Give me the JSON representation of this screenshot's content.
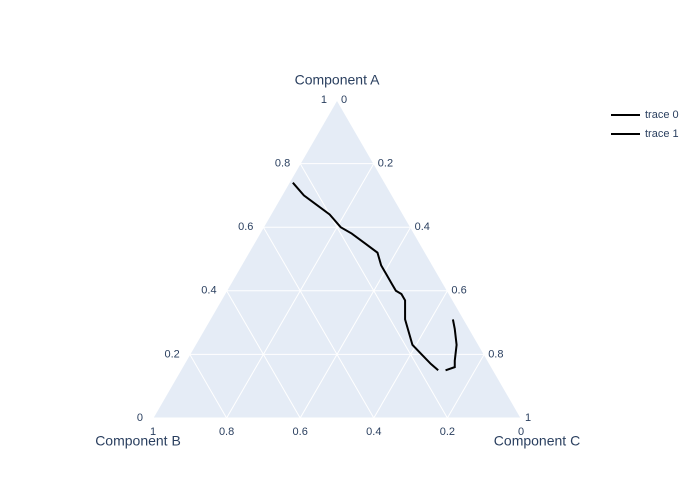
{
  "chart_data": {
    "type": "ternary",
    "aaxis_title": "Component A",
    "baxis_title": "Component B",
    "caxis_title": "Component C",
    "aticks": [
      0,
      0.2,
      0.4,
      0.6,
      0.8,
      1
    ],
    "bticks": [
      0,
      0.2,
      0.4,
      0.6,
      0.8,
      1
    ],
    "cticks": [
      0,
      0.2,
      0.4,
      0.6,
      0.8,
      1
    ],
    "grid": true,
    "series": [
      {
        "name": "trace 0",
        "color": "#000000",
        "a": [
          0.74,
          0.7,
          0.67,
          0.64,
          0.6,
          0.58,
          0.55,
          0.52,
          0.48,
          0.45,
          0.42,
          0.4,
          0.39,
          0.37,
          0.31,
          0.27,
          0.23,
          0.2,
          0.17,
          0.15
        ],
        "b": [
          0.25,
          0.24,
          0.22,
          0.2,
          0.19,
          0.17,
          0.15,
          0.13,
          0.14,
          0.14,
          0.14,
          0.14,
          0.13,
          0.13,
          0.16,
          0.17,
          0.18,
          0.17,
          0.16,
          0.15
        ],
        "c": [
          0.01,
          0.06,
          0.11,
          0.16,
          0.21,
          0.25,
          0.3,
          0.35,
          0.38,
          0.41,
          0.44,
          0.46,
          0.48,
          0.5,
          0.53,
          0.56,
          0.59,
          0.63,
          0.67,
          0.7
        ]
      },
      {
        "name": "trace 1",
        "color": "#000000",
        "a": [
          0.31,
          0.28,
          0.23,
          0.18,
          0.16,
          0.15
        ],
        "b": [
          0.03,
          0.04,
          0.06,
          0.09,
          0.1,
          0.13
        ],
        "c": [
          0.66,
          0.68,
          0.71,
          0.73,
          0.74,
          0.72
        ]
      }
    ]
  }
}
